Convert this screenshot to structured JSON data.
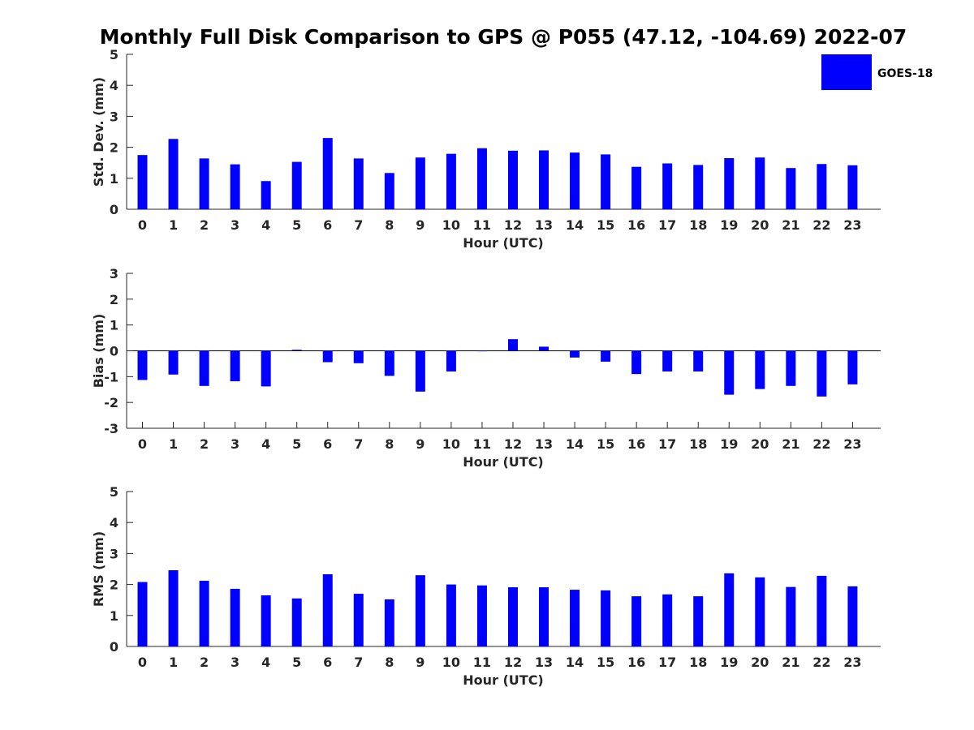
{
  "title": "Monthly Full Disk Comparison to GPS @ P055 (47.12, -104.69) 2022-07",
  "legend": {
    "label": "GOES-18",
    "color": "#0000ff",
    "placement": "top-right"
  },
  "chart_data": [
    {
      "type": "bar",
      "xlabel": "Hour (UTC)",
      "ylabel": "Std. Dev. (mm)",
      "ylim": [
        0,
        5
      ],
      "yticks": [
        0,
        1,
        2,
        3,
        4,
        5
      ],
      "categories": [
        "0",
        "1",
        "2",
        "3",
        "4",
        "5",
        "6",
        "7",
        "8",
        "9",
        "10",
        "11",
        "12",
        "13",
        "14",
        "15",
        "16",
        "17",
        "18",
        "19",
        "20",
        "21",
        "22",
        "23"
      ],
      "series": [
        {
          "name": "GOES-18",
          "color": "#0000ff",
          "values": [
            1.75,
            2.27,
            1.64,
            1.45,
            0.91,
            1.53,
            2.3,
            1.64,
            1.17,
            1.67,
            1.79,
            1.97,
            1.89,
            1.9,
            1.83,
            1.77,
            1.37,
            1.48,
            1.43,
            1.65,
            1.67,
            1.33,
            1.46,
            1.42
          ]
        }
      ]
    },
    {
      "type": "bar",
      "xlabel": "Hour (UTC)",
      "ylabel": "Bias (mm)",
      "ylim": [
        -3,
        3
      ],
      "yticks": [
        -3,
        -2,
        -1,
        0,
        1,
        2,
        3
      ],
      "categories": [
        "0",
        "1",
        "2",
        "3",
        "4",
        "5",
        "6",
        "7",
        "8",
        "9",
        "10",
        "11",
        "12",
        "13",
        "14",
        "15",
        "16",
        "17",
        "18",
        "19",
        "20",
        "21",
        "22",
        "23"
      ],
      "series": [
        {
          "name": "GOES-18",
          "color": "#0000ff",
          "values": [
            -1.13,
            -0.92,
            -1.36,
            -1.18,
            -1.38,
            0.04,
            -0.44,
            -0.48,
            -0.97,
            -1.58,
            -0.8,
            -0.02,
            0.45,
            0.16,
            -0.26,
            -0.42,
            -0.9,
            -0.8,
            -0.8,
            -1.7,
            -1.48,
            -1.36,
            -1.77,
            -1.3
          ]
        }
      ]
    },
    {
      "type": "bar",
      "xlabel": "Hour (UTC)",
      "ylabel": "RMS (mm)",
      "ylim": [
        0,
        5
      ],
      "yticks": [
        0,
        1,
        2,
        3,
        4,
        5
      ],
      "categories": [
        "0",
        "1",
        "2",
        "3",
        "4",
        "5",
        "6",
        "7",
        "8",
        "9",
        "10",
        "11",
        "12",
        "13",
        "14",
        "15",
        "16",
        "17",
        "18",
        "19",
        "20",
        "21",
        "22",
        "23"
      ],
      "series": [
        {
          "name": "GOES-18",
          "color": "#0000ff",
          "values": [
            2.08,
            2.46,
            2.12,
            1.86,
            1.65,
            1.55,
            2.33,
            1.7,
            1.52,
            2.3,
            2.0,
            1.97,
            1.91,
            1.91,
            1.83,
            1.81,
            1.62,
            1.68,
            1.62,
            2.36,
            2.23,
            1.92,
            2.28,
            1.94
          ]
        }
      ]
    }
  ]
}
